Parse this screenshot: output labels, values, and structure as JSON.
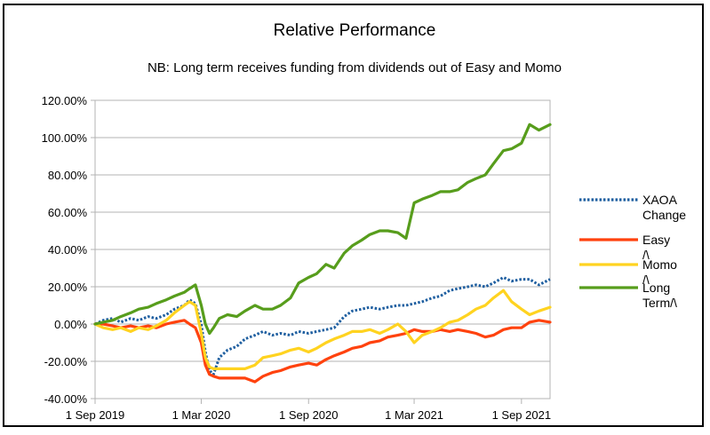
{
  "chart_data": {
    "type": "line",
    "title": "Relative Performance",
    "subtitle": "NB: Long term receives funding from dividends out of Easy and Momo",
    "xlabel": "",
    "ylabel": "",
    "x_ticks": [
      "1 Sep 2019",
      "1 Mar 2020",
      "1 Sep 2020",
      "1 Mar 2021",
      "1 Sep 2021"
    ],
    "x_tick_dates": [
      "2019-09-01",
      "2020-03-01",
      "2020-09-01",
      "2021-03-01",
      "2021-09-01"
    ],
    "xlim": [
      "2019-09-01",
      "2021-10-20"
    ],
    "y_ticks": [
      "120.00%",
      "100.00%",
      "80.00%",
      "60.00%",
      "40.00%",
      "20.00%",
      "0.00%",
      "-20.00%",
      "-40.00%"
    ],
    "ylim": [
      -40,
      120
    ],
    "y_unit": "%",
    "grid": true,
    "legend_position": "right",
    "series": [
      {
        "name": "XAOA Change",
        "color": "#1f5fa0",
        "style": "dotted",
        "points": [
          [
            "2019-09-01",
            0
          ],
          [
            "2019-09-15",
            2
          ],
          [
            "2019-10-01",
            3
          ],
          [
            "2019-10-15",
            1
          ],
          [
            "2019-11-01",
            3
          ],
          [
            "2019-11-15",
            2
          ],
          [
            "2019-12-01",
            4
          ],
          [
            "2019-12-15",
            3
          ],
          [
            "2020-01-01",
            5
          ],
          [
            "2020-01-15",
            8
          ],
          [
            "2020-02-01",
            10
          ],
          [
            "2020-02-10",
            13
          ],
          [
            "2020-02-20",
            11
          ],
          [
            "2020-03-01",
            0
          ],
          [
            "2020-03-08",
            -15
          ],
          [
            "2020-03-15",
            -25
          ],
          [
            "2020-03-22",
            -27
          ],
          [
            "2020-04-01",
            -18
          ],
          [
            "2020-04-15",
            -14
          ],
          [
            "2020-05-01",
            -12
          ],
          [
            "2020-05-15",
            -8
          ],
          [
            "2020-06-01",
            -6
          ],
          [
            "2020-06-15",
            -4
          ],
          [
            "2020-07-01",
            -6
          ],
          [
            "2020-07-15",
            -5
          ],
          [
            "2020-08-01",
            -6
          ],
          [
            "2020-08-15",
            -4
          ],
          [
            "2020-09-01",
            -5
          ],
          [
            "2020-09-15",
            -4
          ],
          [
            "2020-10-01",
            -3
          ],
          [
            "2020-10-15",
            -2
          ],
          [
            "2020-11-01",
            4
          ],
          [
            "2020-11-15",
            7
          ],
          [
            "2020-12-01",
            8
          ],
          [
            "2020-12-15",
            9
          ],
          [
            "2021-01-01",
            8
          ],
          [
            "2021-01-15",
            9
          ],
          [
            "2021-02-01",
            10
          ],
          [
            "2021-02-15",
            10
          ],
          [
            "2021-03-01",
            11
          ],
          [
            "2021-03-15",
            12
          ],
          [
            "2021-04-01",
            14
          ],
          [
            "2021-04-15",
            15
          ],
          [
            "2021-05-01",
            18
          ],
          [
            "2021-05-15",
            19
          ],
          [
            "2021-06-01",
            20
          ],
          [
            "2021-06-15",
            21
          ],
          [
            "2021-07-01",
            20
          ],
          [
            "2021-07-15",
            22
          ],
          [
            "2021-08-01",
            25
          ],
          [
            "2021-08-15",
            23
          ],
          [
            "2021-09-01",
            24
          ],
          [
            "2021-09-15",
            24
          ],
          [
            "2021-10-01",
            21
          ],
          [
            "2021-10-20",
            24
          ]
        ]
      },
      {
        "name": "Easy /\\",
        "color": "#ff420e",
        "style": "solid",
        "points": [
          [
            "2019-09-01",
            0
          ],
          [
            "2019-09-15",
            0
          ],
          [
            "2019-10-01",
            -1
          ],
          [
            "2019-10-15",
            -2
          ],
          [
            "2019-11-01",
            -1
          ],
          [
            "2019-11-15",
            -2
          ],
          [
            "2019-12-01",
            -1
          ],
          [
            "2019-12-15",
            -2
          ],
          [
            "2020-01-01",
            0
          ],
          [
            "2020-01-15",
            1
          ],
          [
            "2020-02-01",
            2
          ],
          [
            "2020-02-10",
            0
          ],
          [
            "2020-02-20",
            -2
          ],
          [
            "2020-03-01",
            -10
          ],
          [
            "2020-03-08",
            -22
          ],
          [
            "2020-03-15",
            -27
          ],
          [
            "2020-03-22",
            -28
          ],
          [
            "2020-04-01",
            -29
          ],
          [
            "2020-04-15",
            -29
          ],
          [
            "2020-05-01",
            -29
          ],
          [
            "2020-05-15",
            -29
          ],
          [
            "2020-06-01",
            -31
          ],
          [
            "2020-06-15",
            -28
          ],
          [
            "2020-07-01",
            -26
          ],
          [
            "2020-07-15",
            -25
          ],
          [
            "2020-08-01",
            -23
          ],
          [
            "2020-08-15",
            -22
          ],
          [
            "2020-09-01",
            -21
          ],
          [
            "2020-09-15",
            -22
          ],
          [
            "2020-10-01",
            -19
          ],
          [
            "2020-10-15",
            -17
          ],
          [
            "2020-11-01",
            -15
          ],
          [
            "2020-11-15",
            -13
          ],
          [
            "2020-12-01",
            -12
          ],
          [
            "2020-12-15",
            -10
          ],
          [
            "2021-01-01",
            -9
          ],
          [
            "2021-01-15",
            -7
          ],
          [
            "2021-02-01",
            -6
          ],
          [
            "2021-02-15",
            -5
          ],
          [
            "2021-03-01",
            -3
          ],
          [
            "2021-03-15",
            -4
          ],
          [
            "2021-04-01",
            -4
          ],
          [
            "2021-04-15",
            -3
          ],
          [
            "2021-05-01",
            -4
          ],
          [
            "2021-05-15",
            -3
          ],
          [
            "2021-06-01",
            -4
          ],
          [
            "2021-06-15",
            -5
          ],
          [
            "2021-07-01",
            -7
          ],
          [
            "2021-07-15",
            -6
          ],
          [
            "2021-08-01",
            -3
          ],
          [
            "2021-08-15",
            -2
          ],
          [
            "2021-09-01",
            -2
          ],
          [
            "2021-09-15",
            1
          ],
          [
            "2021-10-01",
            2
          ],
          [
            "2021-10-20",
            1
          ]
        ]
      },
      {
        "name": "Momo /\\",
        "color": "#ffd320",
        "style": "solid",
        "points": [
          [
            "2019-09-01",
            0
          ],
          [
            "2019-09-15",
            -2
          ],
          [
            "2019-10-01",
            -3
          ],
          [
            "2019-10-15",
            -2
          ],
          [
            "2019-11-01",
            -4
          ],
          [
            "2019-11-15",
            -2
          ],
          [
            "2019-12-01",
            -3
          ],
          [
            "2019-12-15",
            -1
          ],
          [
            "2020-01-01",
            2
          ],
          [
            "2020-01-15",
            6
          ],
          [
            "2020-02-01",
            10
          ],
          [
            "2020-02-10",
            12
          ],
          [
            "2020-02-20",
            10
          ],
          [
            "2020-03-01",
            -5
          ],
          [
            "2020-03-08",
            -18
          ],
          [
            "2020-03-15",
            -23
          ],
          [
            "2020-03-22",
            -24
          ],
          [
            "2020-04-01",
            -24
          ],
          [
            "2020-04-15",
            -24
          ],
          [
            "2020-05-01",
            -24
          ],
          [
            "2020-05-15",
            -24
          ],
          [
            "2020-06-01",
            -22
          ],
          [
            "2020-06-15",
            -18
          ],
          [
            "2020-07-01",
            -17
          ],
          [
            "2020-07-15",
            -16
          ],
          [
            "2020-08-01",
            -14
          ],
          [
            "2020-08-15",
            -13
          ],
          [
            "2020-09-01",
            -15
          ],
          [
            "2020-09-15",
            -13
          ],
          [
            "2020-10-01",
            -10
          ],
          [
            "2020-10-15",
            -8
          ],
          [
            "2020-11-01",
            -6
          ],
          [
            "2020-11-15",
            -4
          ],
          [
            "2020-12-01",
            -4
          ],
          [
            "2020-12-15",
            -3
          ],
          [
            "2021-01-01",
            -5
          ],
          [
            "2021-01-15",
            -3
          ],
          [
            "2021-02-01",
            0
          ],
          [
            "2021-02-15",
            -4
          ],
          [
            "2021-03-01",
            -10
          ],
          [
            "2021-03-15",
            -6
          ],
          [
            "2021-04-01",
            -4
          ],
          [
            "2021-04-15",
            -2
          ],
          [
            "2021-05-01",
            1
          ],
          [
            "2021-05-15",
            2
          ],
          [
            "2021-06-01",
            5
          ],
          [
            "2021-06-15",
            8
          ],
          [
            "2021-07-01",
            10
          ],
          [
            "2021-07-15",
            14
          ],
          [
            "2021-08-01",
            18
          ],
          [
            "2021-08-15",
            12
          ],
          [
            "2021-09-01",
            8
          ],
          [
            "2021-09-15",
            5
          ],
          [
            "2021-10-01",
            7
          ],
          [
            "2021-10-20",
            9
          ]
        ]
      },
      {
        "name": "Long Term/\\",
        "color": "#579d1c",
        "style": "solid",
        "points": [
          [
            "2019-09-01",
            0
          ],
          [
            "2019-09-15",
            1
          ],
          [
            "2019-10-01",
            2
          ],
          [
            "2019-10-15",
            4
          ],
          [
            "2019-11-01",
            6
          ],
          [
            "2019-11-15",
            8
          ],
          [
            "2019-12-01",
            9
          ],
          [
            "2019-12-15",
            11
          ],
          [
            "2020-01-01",
            13
          ],
          [
            "2020-01-15",
            15
          ],
          [
            "2020-02-01",
            17
          ],
          [
            "2020-02-10",
            19
          ],
          [
            "2020-02-20",
            21
          ],
          [
            "2020-03-01",
            10
          ],
          [
            "2020-03-08",
            0
          ],
          [
            "2020-03-15",
            -5
          ],
          [
            "2020-03-22",
            -2
          ],
          [
            "2020-04-01",
            3
          ],
          [
            "2020-04-15",
            5
          ],
          [
            "2020-05-01",
            4
          ],
          [
            "2020-05-15",
            7
          ],
          [
            "2020-06-01",
            10
          ],
          [
            "2020-06-15",
            8
          ],
          [
            "2020-07-01",
            8
          ],
          [
            "2020-07-15",
            10
          ],
          [
            "2020-08-01",
            14
          ],
          [
            "2020-08-15",
            22
          ],
          [
            "2020-09-01",
            25
          ],
          [
            "2020-09-15",
            27
          ],
          [
            "2020-10-01",
            32
          ],
          [
            "2020-10-15",
            30
          ],
          [
            "2020-11-01",
            38
          ],
          [
            "2020-11-15",
            42
          ],
          [
            "2020-12-01",
            45
          ],
          [
            "2020-12-15",
            48
          ],
          [
            "2021-01-01",
            50
          ],
          [
            "2021-01-15",
            50
          ],
          [
            "2021-02-01",
            49
          ],
          [
            "2021-02-15",
            46
          ],
          [
            "2021-03-01",
            65
          ],
          [
            "2021-03-15",
            67
          ],
          [
            "2021-04-01",
            69
          ],
          [
            "2021-04-15",
            71
          ],
          [
            "2021-05-01",
            71
          ],
          [
            "2021-05-15",
            72
          ],
          [
            "2021-06-01",
            76
          ],
          [
            "2021-06-15",
            78
          ],
          [
            "2021-07-01",
            80
          ],
          [
            "2021-07-15",
            86
          ],
          [
            "2021-08-01",
            93
          ],
          [
            "2021-08-15",
            94
          ],
          [
            "2021-09-01",
            97
          ],
          [
            "2021-09-15",
            107
          ],
          [
            "2021-10-01",
            104
          ],
          [
            "2021-10-20",
            107
          ]
        ]
      }
    ]
  }
}
